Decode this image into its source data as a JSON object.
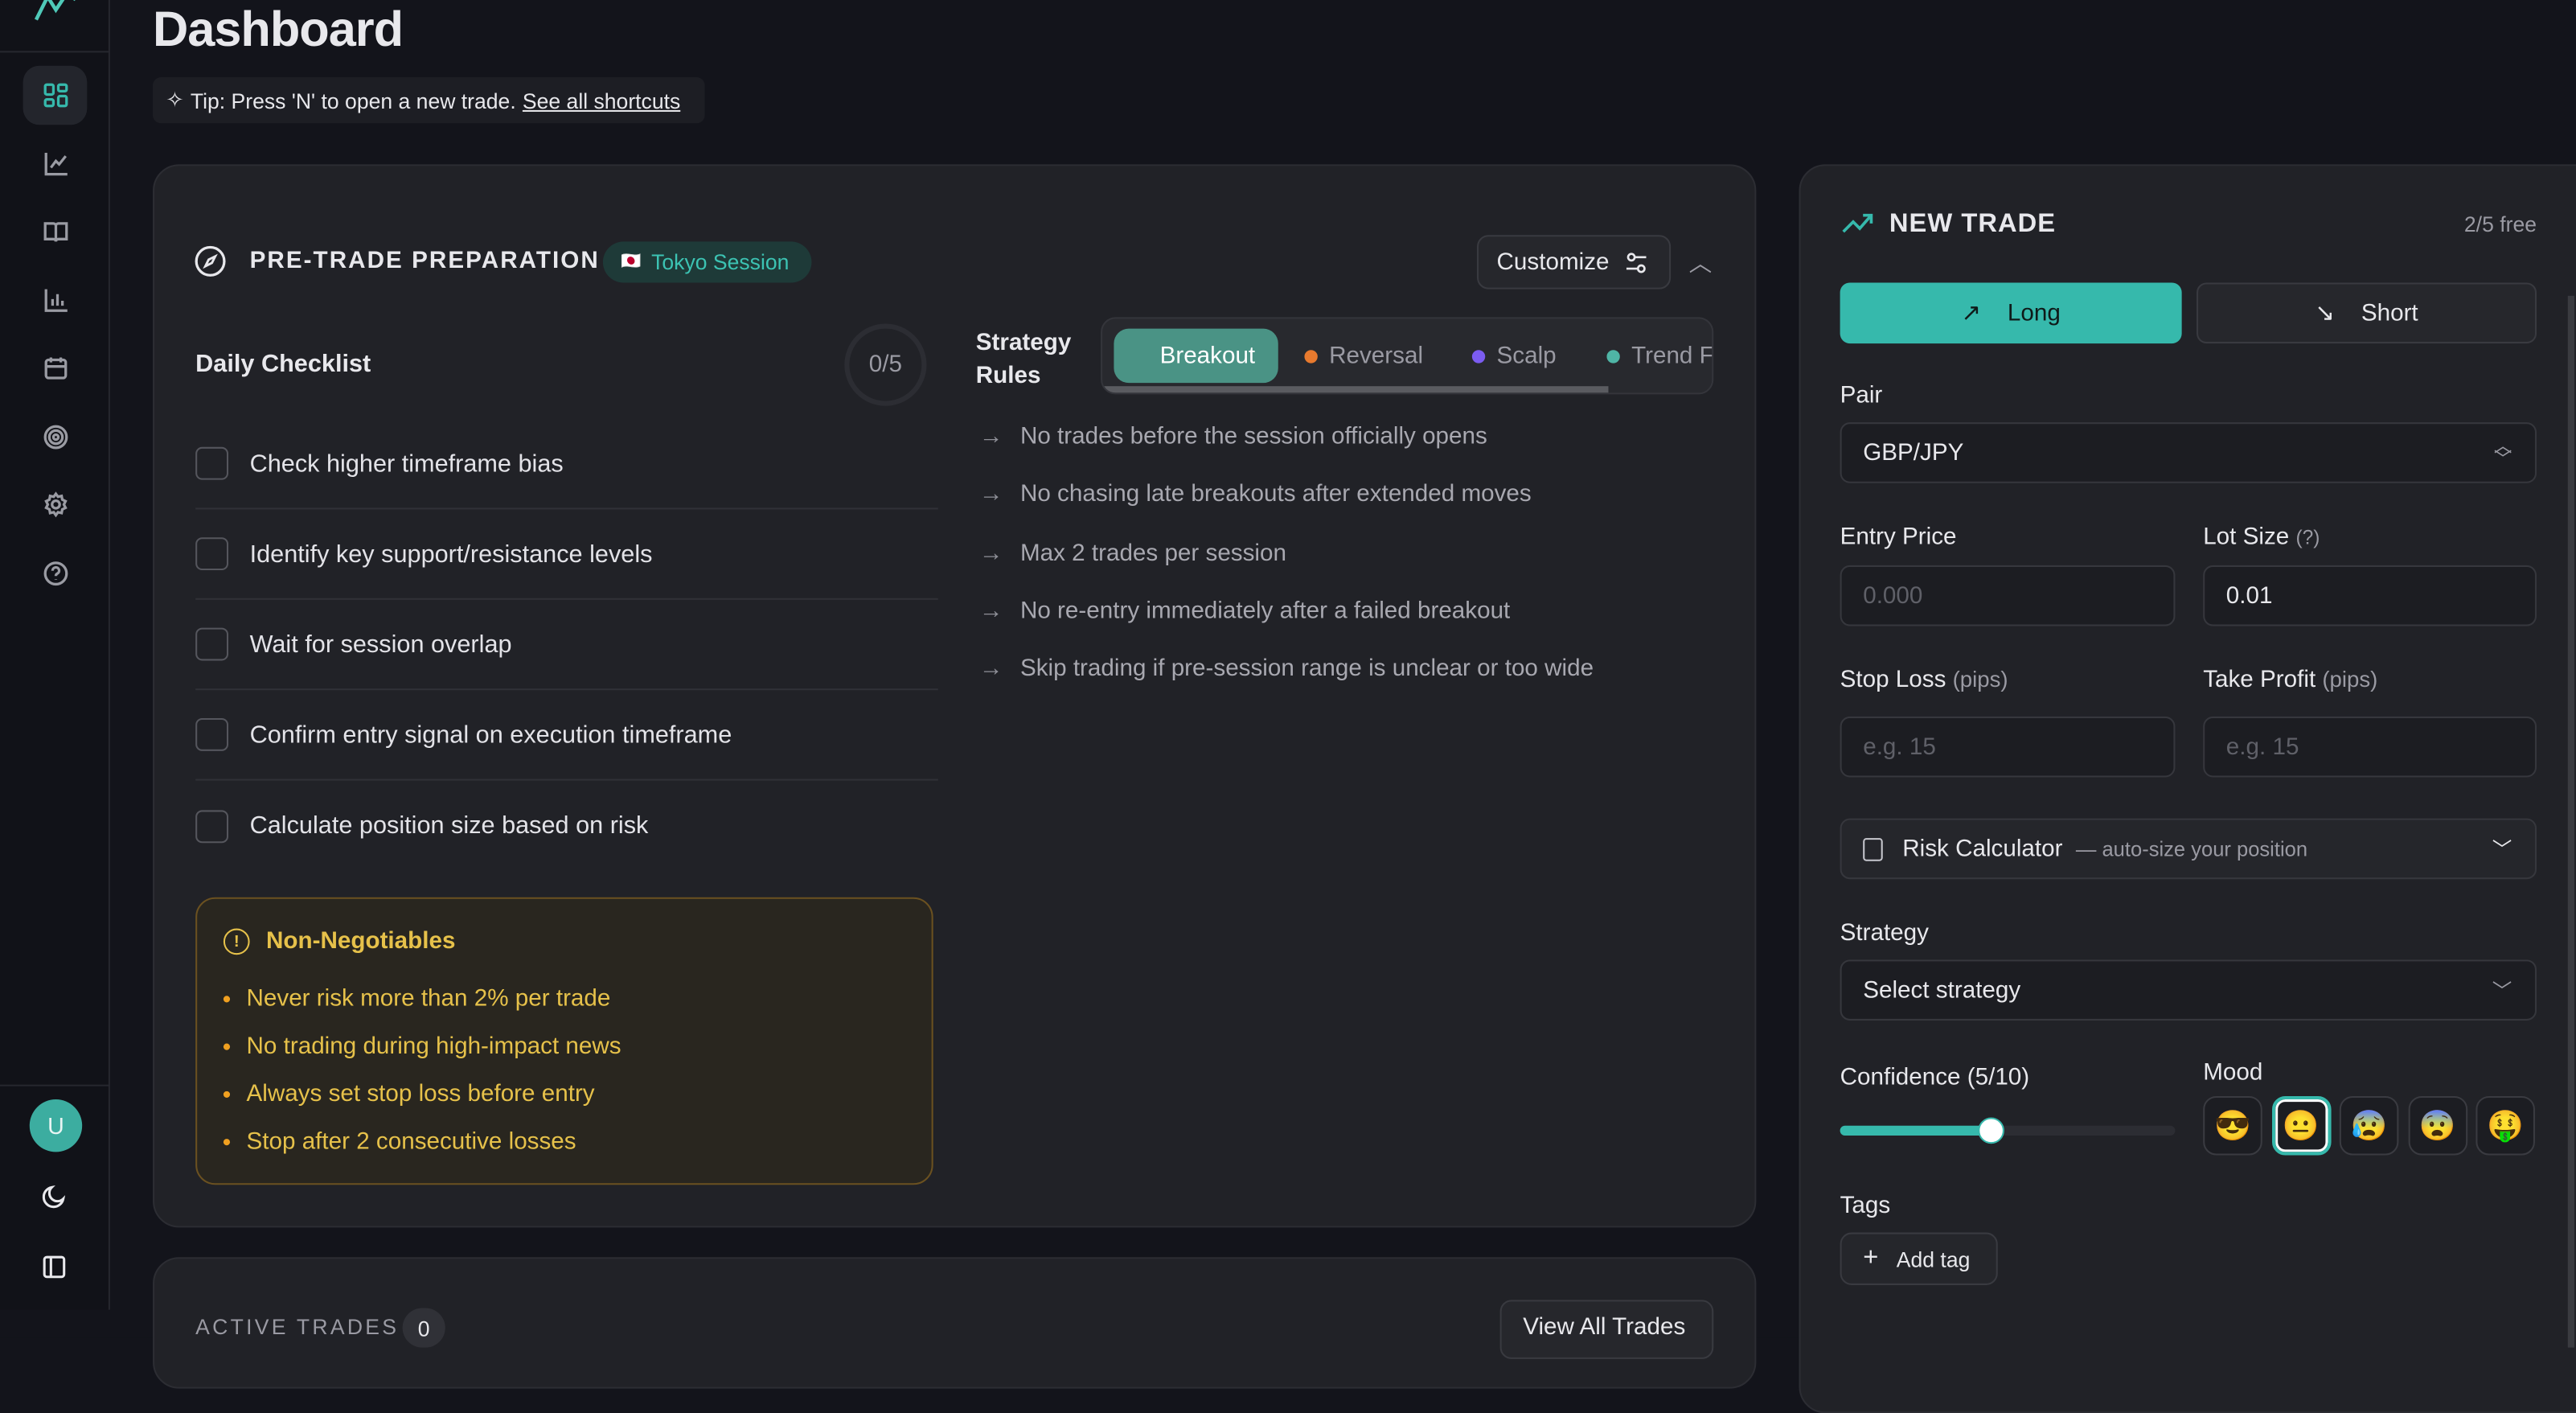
{
  "colors": {
    "accent": "#36b9ac",
    "warning": "#e6c14a",
    "reversal": "#e87a2e",
    "scalp": "#7b5cf0",
    "trend": "#4fb5a6"
  },
  "sidebar": {
    "logo": "trend-logo",
    "items": [
      {
        "name": "dashboard",
        "icon": "grid-icon",
        "active": true
      },
      {
        "name": "analytics",
        "icon": "line-chart-icon"
      },
      {
        "name": "journal",
        "icon": "book-icon"
      },
      {
        "name": "reports",
        "icon": "bar-chart-icon"
      },
      {
        "name": "calendar",
        "icon": "calendar-icon"
      },
      {
        "name": "goals",
        "icon": "target-icon"
      },
      {
        "name": "settings",
        "icon": "gear-icon"
      },
      {
        "name": "help",
        "icon": "help-icon"
      }
    ],
    "avatar": "U"
  },
  "header": {
    "title": "Dashboard",
    "tip": "Tip: Press 'N' to open a new trade.",
    "tip_link": "See all shortcuts"
  },
  "prep": {
    "title": "PRE-TRADE PREPARATION",
    "session": "Tokyo Session",
    "session_flag": "🇯🇵",
    "customize": "Customize",
    "checklist_title": "Daily Checklist",
    "progress": "0/5",
    "items": [
      "Check higher timeframe bias",
      "Identify key support/resistance levels",
      "Wait for session overlap",
      "Confirm entry signal on execution timeframe",
      "Calculate position size based on risk"
    ],
    "non_neg_title": "Non-Negotiables",
    "non_neg": [
      "Never risk more than 2% per trade",
      "No trading during high-impact news",
      "Always set stop loss before entry",
      "Stop after 2 consecutive losses"
    ],
    "rules_label_1": "Strategy",
    "rules_label_2": "Rules",
    "tabs": [
      {
        "label": "Breakout",
        "active": true
      },
      {
        "label": "Reversal"
      },
      {
        "label": "Scalp"
      },
      {
        "label": "Trend F"
      }
    ],
    "rules": [
      "No trades before the session officially opens",
      "No chasing late breakouts after extended moves",
      "Max 2 trades per session",
      "No re-entry immediately after a failed breakout",
      "Skip trading if pre-session range is unclear or too wide"
    ]
  },
  "active": {
    "title": "ACTIVE TRADES",
    "count": "0",
    "view_all": "View All Trades"
  },
  "new_trade": {
    "title": "NEW TRADE",
    "free": "2/5 free",
    "long": "Long",
    "short": "Short",
    "pair_label": "Pair",
    "pair": "GBP/JPY",
    "entry_label": "Entry Price",
    "entry_ph": "0.000",
    "lot_label": "Lot Size",
    "lot_hint": "(?)",
    "lot": "0.01",
    "sl_label": "Stop Loss",
    "sl_unit": "(pips)",
    "sl_ph": "e.g. 15",
    "tp_label": "Take Profit",
    "tp_unit": "(pips)",
    "tp_ph": "e.g. 15",
    "risk_label": "Risk Calculator",
    "risk_sub": "— auto-size your position",
    "strategy_label": "Strategy",
    "strategy": "Select strategy",
    "confidence_label": "Confidence (5/10)",
    "confidence": 5,
    "confidence_max": 10,
    "mood_label": "Mood",
    "moods": [
      "😎",
      "😐",
      "😰",
      "😨",
      "🤑"
    ],
    "mood_selected": 1,
    "tags_label": "Tags",
    "add_tag": "Add tag"
  }
}
